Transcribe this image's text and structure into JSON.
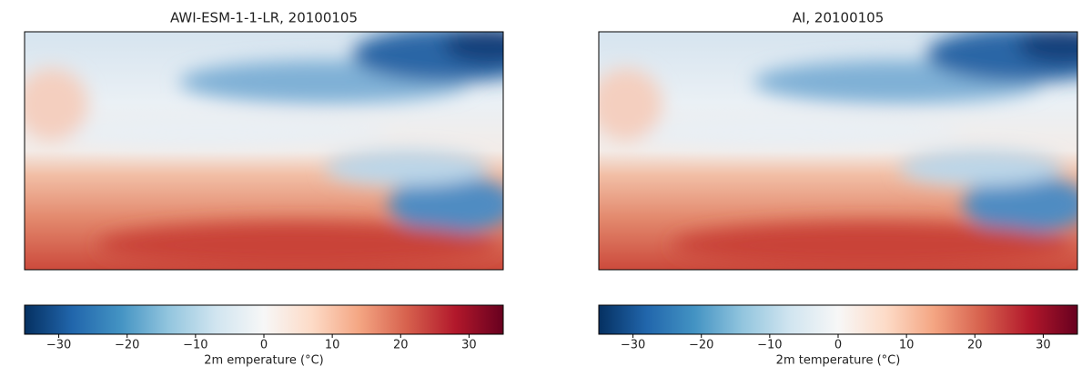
{
  "chart_data": [
    {
      "type": "heatmap",
      "title": "AWI-ESM-1-1-LR, 20100105",
      "colorbar": {
        "label": "2m emperature (°C)",
        "lim": [
          -35,
          35
        ],
        "ticks": [
          {
            "value": -30,
            "label": "−30"
          },
          {
            "value": -20,
            "label": "−20"
          },
          {
            "value": -10,
            "label": "−10"
          },
          0,
          10,
          20,
          30
        ],
        "colors": [
          "#053061",
          "#2166ac",
          "#4393c3",
          "#92c5de",
          "#d1e5f0",
          "#f7f7f7",
          "#fddbc7",
          "#f4a582",
          "#d6604d",
          "#b2182b",
          "#67001f"
        ]
      }
    },
    {
      "type": "heatmap",
      "title": "AI, 20100105",
      "colorbar": {
        "label": "2m temperature (°C)",
        "lim": [
          -35,
          35
        ],
        "ticks": [
          {
            "value": -30,
            "label": "−30"
          },
          {
            "value": -20,
            "label": "−20"
          },
          {
            "value": -10,
            "label": "−10"
          },
          0,
          10,
          20,
          30
        ],
        "colors": [
          "#053061",
          "#2166ac",
          "#4393c3",
          "#92c5de",
          "#d1e5f0",
          "#f7f7f7",
          "#fddbc7",
          "#f4a582",
          "#d6604d",
          "#b2182b",
          "#67001f"
        ]
      }
    }
  ]
}
